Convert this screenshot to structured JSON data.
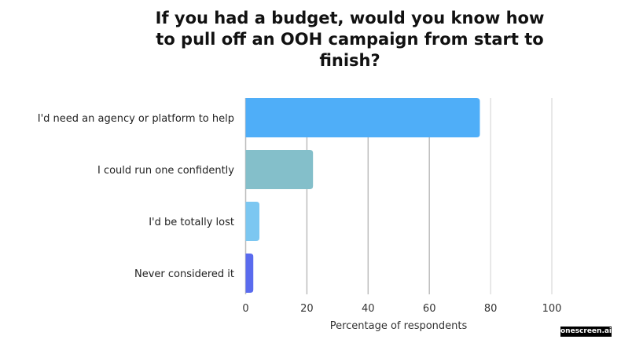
{
  "chart_data": {
    "type": "bar",
    "orientation": "horizontal",
    "title": "If you had a budget, would you know how to pull off an OOH campaign from start to finish?",
    "categories": [
      "I'd need an agency or platform to help",
      "I could run one confidently",
      "I'd be totally lost",
      "Never considered it"
    ],
    "values": [
      76.5,
      22,
      4.5,
      2.5
    ],
    "colors": [
      "#4FAEF8",
      "#84BFCA",
      "#7CC7F1",
      "#5A6BEE"
    ],
    "xlabel": "Percentage of respondents",
    "ylabel": "",
    "xlim": [
      0,
      100
    ],
    "xticks": [
      0,
      20,
      40,
      60,
      80,
      100
    ],
    "grid": true
  },
  "watermark": "onescreen.ai"
}
